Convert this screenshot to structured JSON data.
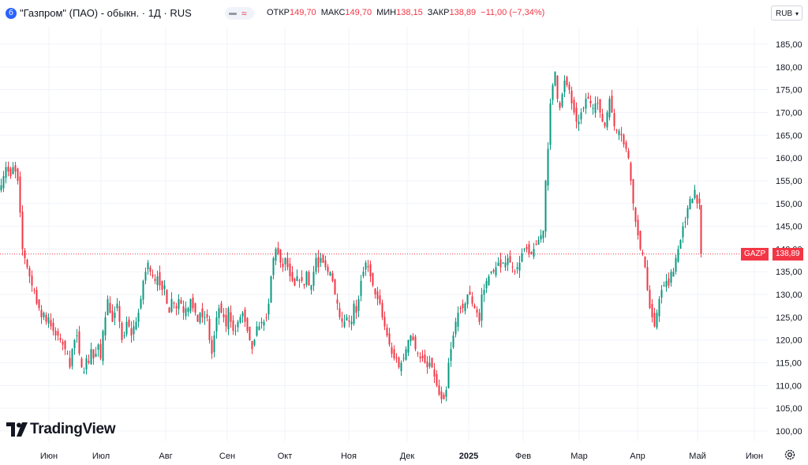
{
  "header": {
    "symbol_icon": "tv-symbol-icon",
    "title": "\"Газпром\" (ПАО) - обыкн. · 1Д · RUS",
    "ohlc": {
      "open_label": "ОТКР",
      "open": "149,70",
      "high_label": "МАКС",
      "high": "149,70",
      "low_label": "МИН",
      "low": "138,15",
      "close_label": "ЗАКР",
      "close": "138,89",
      "change": "−11,00 (−7,34%)"
    },
    "currency": "RUB"
  },
  "logo": {
    "text": "TradingView"
  },
  "price_tag": {
    "symbol": "GAZP",
    "price": "138,89"
  },
  "colors": {
    "up": "#089981",
    "down": "#f23645",
    "grid": "#f0f3fa",
    "text": "#131722"
  },
  "chart_data": {
    "type": "candlestick",
    "title": "\"Газпром\" (ПАО) - обыкн. · 1Д · RUS",
    "yaxis": {
      "ticks": [
        "185,00",
        "180,00",
        "175,00",
        "170,00",
        "165,00",
        "160,00",
        "155,00",
        "150,00",
        "145,00",
        "140,00",
        "135,00",
        "130,00",
        "125,00",
        "120,00",
        "115,00",
        "110,00",
        "105,00",
        "100,00"
      ],
      "ylim": [
        98,
        189
      ]
    },
    "xaxis": {
      "ticks": [
        "Июн",
        "Июл",
        "Авг",
        "Сен",
        "Окт",
        "Ноя",
        "Дек",
        "2025",
        "Фев",
        "Мар",
        "Апр",
        "Май",
        "Июн"
      ]
    },
    "last_price": 138.89,
    "grid": true,
    "series": [
      {
        "key_closes": [
          [
            0,
            154
          ],
          [
            3,
            156
          ],
          [
            6,
            158
          ],
          [
            9,
            157
          ],
          [
            12,
            156
          ],
          [
            15,
            158
          ],
          [
            18,
            157
          ],
          [
            21,
            155
          ],
          [
            24,
            148
          ],
          [
            27,
            140
          ],
          [
            30,
            138
          ],
          [
            33,
            136
          ],
          [
            36,
            134
          ],
          [
            39,
            132
          ],
          [
            42,
            131
          ],
          [
            45,
            128
          ],
          [
            48,
            127
          ],
          [
            51,
            125
          ],
          [
            54,
            126
          ],
          [
            57,
            124
          ],
          [
            60,
            125
          ],
          [
            63,
            123
          ],
          [
            66,
            122
          ],
          [
            69,
            121
          ],
          [
            72,
            121
          ],
          [
            75,
            120
          ],
          [
            78,
            119
          ],
          [
            81,
            118
          ],
          [
            84,
            117
          ],
          [
            87,
            114
          ],
          [
            90,
            118
          ],
          [
            93,
            120
          ],
          [
            96,
            121
          ],
          [
            99,
            117
          ],
          [
            102,
            114
          ],
          [
            105,
            113
          ],
          [
            108,
            116
          ],
          [
            111,
            115
          ],
          [
            114,
            118
          ],
          [
            117,
            116
          ],
          [
            120,
            117
          ],
          [
            123,
            119
          ],
          [
            126,
            116
          ],
          [
            129,
            122
          ],
          [
            132,
            125
          ],
          [
            135,
            129
          ],
          [
            138,
            126
          ],
          [
            141,
            124
          ],
          [
            144,
            126
          ],
          [
            147,
            128
          ],
          [
            150,
            124
          ],
          [
            153,
            120
          ],
          [
            156,
            121
          ],
          [
            159,
            124
          ],
          [
            162,
            123
          ],
          [
            165,
            121
          ],
          [
            168,
            123
          ],
          [
            171,
            124
          ],
          [
            174,
            126
          ],
          [
            177,
            129
          ],
          [
            180,
            133
          ],
          [
            183,
            135
          ],
          [
            186,
            137
          ],
          [
            189,
            135
          ],
          [
            192,
            134
          ],
          [
            195,
            133
          ],
          [
            198,
            134
          ],
          [
            201,
            132
          ],
          [
            204,
            131
          ],
          [
            207,
            132
          ],
          [
            210,
            128
          ],
          [
            213,
            126
          ],
          [
            216,
            129
          ],
          [
            219,
            128
          ],
          [
            222,
            127
          ],
          [
            225,
            129
          ],
          [
            228,
            128
          ],
          [
            231,
            126
          ],
          [
            234,
            127
          ],
          [
            237,
            127
          ],
          [
            240,
            129
          ],
          [
            243,
            127
          ],
          [
            246,
            126
          ],
          [
            249,
            124
          ],
          [
            252,
            126
          ],
          [
            255,
            125
          ],
          [
            258,
            125
          ],
          [
            261,
            125
          ],
          [
            264,
            120
          ],
          [
            267,
            117
          ],
          [
            270,
            121
          ],
          [
            273,
            125
          ],
          [
            276,
            127
          ],
          [
            279,
            126
          ],
          [
            282,
            125
          ],
          [
            285,
            123
          ],
          [
            288,
            127
          ],
          [
            291,
            124
          ],
          [
            294,
            122
          ],
          [
            297,
            122
          ],
          [
            300,
            124
          ],
          [
            303,
            125
          ],
          [
            306,
            126
          ],
          [
            309,
            124
          ],
          [
            312,
            122
          ],
          [
            315,
            120
          ],
          [
            318,
            118
          ],
          [
            321,
            120
          ],
          [
            324,
            123
          ],
          [
            327,
            123
          ],
          [
            330,
            124
          ],
          [
            333,
            124
          ],
          [
            336,
            125
          ],
          [
            339,
            128
          ],
          [
            342,
            134
          ],
          [
            345,
            138
          ],
          [
            348,
            140
          ],
          [
            351,
            139
          ],
          [
            354,
            137
          ],
          [
            357,
            136
          ],
          [
            360,
            138
          ],
          [
            363,
            136
          ],
          [
            366,
            134
          ],
          [
            369,
            133
          ],
          [
            372,
            132
          ],
          [
            375,
            134
          ],
          [
            378,
            133
          ],
          [
            381,
            133
          ],
          [
            384,
            132
          ],
          [
            387,
            135
          ],
          [
            390,
            132
          ],
          [
            393,
            132
          ],
          [
            396,
            135
          ],
          [
            399,
            138
          ],
          [
            402,
            136
          ],
          [
            405,
            138
          ],
          [
            408,
            137
          ],
          [
            411,
            136
          ],
          [
            414,
            135
          ],
          [
            417,
            135
          ],
          [
            420,
            133
          ],
          [
            423,
            130
          ],
          [
            426,
            128
          ],
          [
            429,
            125
          ],
          [
            432,
            124
          ],
          [
            435,
            124
          ],
          [
            438,
            125
          ],
          [
            441,
            124
          ],
          [
            444,
            124
          ],
          [
            447,
            128
          ],
          [
            450,
            126
          ],
          [
            453,
            129
          ],
          [
            456,
            133
          ],
          [
            459,
            135
          ],
          [
            462,
            137
          ],
          [
            465,
            136
          ],
          [
            468,
            134
          ],
          [
            471,
            132
          ],
          [
            474,
            130
          ],
          [
            477,
            129
          ],
          [
            480,
            128
          ],
          [
            483,
            125
          ],
          [
            486,
            123
          ],
          [
            489,
            121
          ],
          [
            492,
            119
          ],
          [
            495,
            117
          ],
          [
            498,
            116
          ],
          [
            501,
            116
          ],
          [
            504,
            114
          ],
          [
            507,
            115
          ],
          [
            510,
            116
          ],
          [
            513,
            118
          ],
          [
            516,
            120
          ],
          [
            519,
            121
          ],
          [
            522,
            120
          ],
          [
            525,
            118
          ],
          [
            528,
            117
          ],
          [
            531,
            116
          ],
          [
            534,
            116
          ],
          [
            537,
            115
          ],
          [
            540,
            114
          ],
          [
            543,
            115
          ],
          [
            546,
            114
          ],
          [
            549,
            112
          ],
          [
            552,
            110
          ],
          [
            555,
            108
          ],
          [
            558,
            107
          ],
          [
            561,
            107
          ],
          [
            564,
            109
          ],
          [
            567,
            115
          ],
          [
            570,
            118
          ],
          [
            573,
            121
          ],
          [
            576,
            124
          ],
          [
            579,
            126
          ],
          [
            582,
            127
          ],
          [
            585,
            127
          ],
          [
            588,
            128
          ],
          [
            591,
            130
          ],
          [
            594,
            130
          ],
          [
            597,
            128
          ],
          [
            600,
            127
          ],
          [
            603,
            126
          ],
          [
            606,
            124
          ],
          [
            609,
            130
          ],
          [
            612,
            131
          ],
          [
            615,
            133
          ],
          [
            618,
            134
          ],
          [
            621,
            135
          ],
          [
            624,
            135
          ],
          [
            627,
            136
          ],
          [
            630,
            137
          ],
          [
            633,
            136
          ],
          [
            636,
            137
          ],
          [
            639,
            137
          ],
          [
            642,
            138
          ],
          [
            645,
            137
          ],
          [
            648,
            136
          ],
          [
            651,
            135
          ],
          [
            654,
            136
          ],
          [
            657,
            137
          ],
          [
            660,
            139
          ],
          [
            663,
            140
          ],
          [
            666,
            140
          ],
          [
            669,
            139
          ],
          [
            672,
            139
          ],
          [
            675,
            140
          ],
          [
            678,
            141
          ],
          [
            681,
            142
          ],
          [
            684,
            143
          ],
          [
            687,
            144
          ],
          [
            690,
            155
          ],
          [
            693,
            162
          ],
          [
            696,
            172
          ],
          [
            699,
            176
          ],
          [
            702,
            179
          ],
          [
            705,
            173
          ],
          [
            708,
            171
          ],
          [
            711,
            174
          ],
          [
            714,
            177
          ],
          [
            717,
            176
          ],
          [
            720,
            175
          ],
          [
            723,
            172
          ],
          [
            726,
            170
          ],
          [
            729,
            168
          ],
          [
            732,
            168
          ],
          [
            735,
            170
          ],
          [
            738,
            171
          ],
          [
            741,
            173
          ],
          [
            744,
            173
          ],
          [
            747,
            172
          ],
          [
            750,
            171
          ],
          [
            753,
            172
          ],
          [
            756,
            172
          ],
          [
            759,
            170
          ],
          [
            762,
            168
          ],
          [
            765,
            167
          ],
          [
            768,
            170
          ],
          [
            771,
            173
          ],
          [
            774,
            170
          ],
          [
            777,
            167
          ],
          [
            780,
            166
          ],
          [
            783,
            166
          ],
          [
            786,
            165
          ],
          [
            789,
            163
          ],
          [
            792,
            162
          ],
          [
            795,
            160
          ],
          [
            798,
            155
          ],
          [
            801,
            150
          ],
          [
            804,
            146
          ],
          [
            807,
            143
          ],
          [
            810,
            140
          ],
          [
            813,
            139
          ],
          [
            816,
            136
          ],
          [
            819,
            131
          ],
          [
            822,
            127
          ],
          [
            825,
            125
          ],
          [
            828,
            123
          ],
          [
            831,
            126
          ],
          [
            834,
            129
          ],
          [
            837,
            131
          ],
          [
            840,
            132
          ],
          [
            843,
            133
          ],
          [
            846,
            132
          ],
          [
            849,
            135
          ],
          [
            852,
            135
          ],
          [
            855,
            138
          ],
          [
            858,
            140
          ],
          [
            861,
            142
          ],
          [
            864,
            145
          ],
          [
            867,
            146
          ],
          [
            870,
            149
          ],
          [
            873,
            151
          ],
          [
            876,
            151
          ],
          [
            879,
            153
          ],
          [
            882,
            150
          ],
          [
            885,
            150
          ],
          [
            887,
            138.89
          ]
        ]
      }
    ]
  }
}
